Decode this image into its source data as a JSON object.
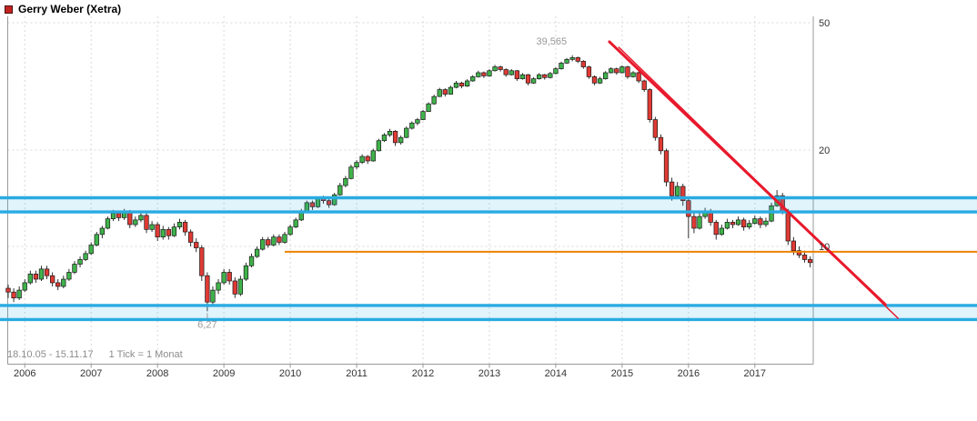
{
  "header": {
    "title": "Gerry Weber (Xetra)"
  },
  "footer": {
    "range_text": "18.10.05 - 15.11.17",
    "tick_text": "1 Tick = 1 Monat"
  },
  "chart_data": {
    "type": "candlestick",
    "title": "Gerry Weber (Xetra)",
    "scale": "log",
    "start": "2005-10",
    "end": "2017-11",
    "interval": "1 month",
    "x_axis": {
      "year_labels": [
        "2006",
        "2007",
        "2008",
        "2009",
        "2010",
        "2011",
        "2012",
        "2013",
        "2014",
        "2015",
        "2016",
        "2017"
      ]
    },
    "y_axis": {
      "side": "right",
      "tick_labels": [
        "50",
        "20",
        "10"
      ],
      "tick_values": [
        50,
        20,
        10
      ]
    },
    "ylim_approx": [
      5.5,
      52
    ],
    "all_time_high": 39.565,
    "all_time_low": 6.27,
    "annotations": {
      "high_text": "39,565",
      "high_month_index": 102,
      "low_text": "6,27",
      "low_month_index": 36
    },
    "candles": [
      [
        7.4,
        7.6,
        6.9,
        7.2
      ],
      [
        7.2,
        7.4,
        6.7,
        6.9
      ],
      [
        6.9,
        7.5,
        6.8,
        7.3
      ],
      [
        7.3,
        7.9,
        7.2,
        7.7
      ],
      [
        7.7,
        8.4,
        7.6,
        8.2
      ],
      [
        8.2,
        8.4,
        7.7,
        7.9
      ],
      [
        7.9,
        8.7,
        7.8,
        8.5
      ],
      [
        8.5,
        8.7,
        7.9,
        8.1
      ],
      [
        8.1,
        8.3,
        7.5,
        7.7
      ],
      [
        7.7,
        7.9,
        7.3,
        7.5
      ],
      [
        7.5,
        8.1,
        7.4,
        7.9
      ],
      [
        7.9,
        8.5,
        7.8,
        8.3
      ],
      [
        8.3,
        9.0,
        8.2,
        8.8
      ],
      [
        8.8,
        9.3,
        8.6,
        9.1
      ],
      [
        9.1,
        9.7,
        9.0,
        9.5
      ],
      [
        9.5,
        10.3,
        9.4,
        10.1
      ],
      [
        10.1,
        11.1,
        10.0,
        10.9
      ],
      [
        10.9,
        11.6,
        10.6,
        11.4
      ],
      [
        11.4,
        12.4,
        11.3,
        12.2
      ],
      [
        12.2,
        13.0,
        12.0,
        12.7
      ],
      [
        12.7,
        12.9,
        12.0,
        12.3
      ],
      [
        12.3,
        13.1,
        12.1,
        12.8
      ],
      [
        12.8,
        13.0,
        11.4,
        11.7
      ],
      [
        11.7,
        12.4,
        11.5,
        12.1
      ],
      [
        12.1,
        12.8,
        11.9,
        12.5
      ],
      [
        12.5,
        12.7,
        11.0,
        11.3
      ],
      [
        11.3,
        12.0,
        11.1,
        11.7
      ],
      [
        11.7,
        11.9,
        10.4,
        10.7
      ],
      [
        10.7,
        11.6,
        10.5,
        11.3
      ],
      [
        11.3,
        11.5,
        10.5,
        10.8
      ],
      [
        10.8,
        11.8,
        10.7,
        11.5
      ],
      [
        11.5,
        12.2,
        11.3,
        11.9
      ],
      [
        11.9,
        12.1,
        10.8,
        11.1
      ],
      [
        11.1,
        11.3,
        10.0,
        10.3
      ],
      [
        10.3,
        10.6,
        9.6,
        9.9
      ],
      [
        9.9,
        10.1,
        7.8,
        8.1
      ],
      [
        8.1,
        8.3,
        6.27,
        6.7
      ],
      [
        6.7,
        7.5,
        6.5,
        7.3
      ],
      [
        7.3,
        7.9,
        7.1,
        7.7
      ],
      [
        7.7,
        8.5,
        7.6,
        8.3
      ],
      [
        8.3,
        8.5,
        7.6,
        7.8
      ],
      [
        7.8,
        8.0,
        6.9,
        7.1
      ],
      [
        7.1,
        8.1,
        7.0,
        7.9
      ],
      [
        7.9,
        8.9,
        7.8,
        8.7
      ],
      [
        8.7,
        9.5,
        8.6,
        9.3
      ],
      [
        9.3,
        10.0,
        9.2,
        9.8
      ],
      [
        9.8,
        10.7,
        9.7,
        10.5
      ],
      [
        10.5,
        10.7,
        9.9,
        10.1
      ],
      [
        10.1,
        10.9,
        10.0,
        10.7
      ],
      [
        10.7,
        10.9,
        10.1,
        10.3
      ],
      [
        10.3,
        11.1,
        10.2,
        10.9
      ],
      [
        10.9,
        11.7,
        10.8,
        11.5
      ],
      [
        11.5,
        12.3,
        11.4,
        12.1
      ],
      [
        12.1,
        13.1,
        12.0,
        12.9
      ],
      [
        12.9,
        13.9,
        12.8,
        13.7
      ],
      [
        13.7,
        13.9,
        13.0,
        13.3
      ],
      [
        13.3,
        14.3,
        13.2,
        14.1
      ],
      [
        14.1,
        14.4,
        13.6,
        13.9
      ],
      [
        13.9,
        14.1,
        13.2,
        13.5
      ],
      [
        13.5,
        14.7,
        13.4,
        14.5
      ],
      [
        14.5,
        15.8,
        14.4,
        15.5
      ],
      [
        15.5,
        16.6,
        15.3,
        16.3
      ],
      [
        16.3,
        18.0,
        16.2,
        17.7
      ],
      [
        17.7,
        18.6,
        17.4,
        18.3
      ],
      [
        18.3,
        19.4,
        18.1,
        19.1
      ],
      [
        19.1,
        19.3,
        18.1,
        18.5
      ],
      [
        18.5,
        20.2,
        18.4,
        19.9
      ],
      [
        19.9,
        21.7,
        19.8,
        21.4
      ],
      [
        21.4,
        22.6,
        21.2,
        22.3
      ],
      [
        22.3,
        23.3,
        22.0,
        22.9
      ],
      [
        22.9,
        23.1,
        20.6,
        21.1
      ],
      [
        21.1,
        22.2,
        20.8,
        21.9
      ],
      [
        21.9,
        23.7,
        21.8,
        23.4
      ],
      [
        23.4,
        24.6,
        23.2,
        24.3
      ],
      [
        24.3,
        25.2,
        23.9,
        24.9
      ],
      [
        24.9,
        26.7,
        24.8,
        26.4
      ],
      [
        26.4,
        28.2,
        26.3,
        27.9
      ],
      [
        27.9,
        29.8,
        27.7,
        29.4
      ],
      [
        29.4,
        31.3,
        29.3,
        30.9
      ],
      [
        30.9,
        31.2,
        29.4,
        29.9
      ],
      [
        29.9,
        31.8,
        29.8,
        31.4
      ],
      [
        31.4,
        32.9,
        31.2,
        32.4
      ],
      [
        32.4,
        32.7,
        31.2,
        31.7
      ],
      [
        31.7,
        33.3,
        31.5,
        32.9
      ],
      [
        32.9,
        34.3,
        32.7,
        33.9
      ],
      [
        33.9,
        35.4,
        33.7,
        34.9
      ],
      [
        34.9,
        35.2,
        33.6,
        34.1
      ],
      [
        34.1,
        35.8,
        33.9,
        35.4
      ],
      [
        35.4,
        36.9,
        35.2,
        36.4
      ],
      [
        36.4,
        36.7,
        35.2,
        35.7
      ],
      [
        35.7,
        36.0,
        33.9,
        34.4
      ],
      [
        34.4,
        35.8,
        34.2,
        35.4
      ],
      [
        35.4,
        35.6,
        32.9,
        33.4
      ],
      [
        33.4,
        34.8,
        33.2,
        34.4
      ],
      [
        34.4,
        34.6,
        31.9,
        32.4
      ],
      [
        32.4,
        33.8,
        32.2,
        33.4
      ],
      [
        33.4,
        34.8,
        33.2,
        34.4
      ],
      [
        34.4,
        34.6,
        33.2,
        33.7
      ],
      [
        33.7,
        35.1,
        33.5,
        34.7
      ],
      [
        34.7,
        36.3,
        34.5,
        35.9
      ],
      [
        35.9,
        37.8,
        35.7,
        37.4
      ],
      [
        37.4,
        38.8,
        37.2,
        38.4
      ],
      [
        38.4,
        39.565,
        37.9,
        38.9
      ],
      [
        38.9,
        39.2,
        37.4,
        37.9
      ],
      [
        37.9,
        38.2,
        35.9,
        36.4
      ],
      [
        36.4,
        36.7,
        33.4,
        33.9
      ],
      [
        33.9,
        34.2,
        31.9,
        32.4
      ],
      [
        32.4,
        33.9,
        32.2,
        33.4
      ],
      [
        33.4,
        35.3,
        33.2,
        34.9
      ],
      [
        34.9,
        36.3,
        34.7,
        35.9
      ],
      [
        35.9,
        36.2,
        34.4,
        34.9
      ],
      [
        34.9,
        36.8,
        34.7,
        36.4
      ],
      [
        36.4,
        36.7,
        33.4,
        33.9
      ],
      [
        33.9,
        35.3,
        33.7,
        34.9
      ],
      [
        34.9,
        35.2,
        32.4,
        32.9
      ],
      [
        32.9,
        33.2,
        30.4,
        30.9
      ],
      [
        30.9,
        31.2,
        24.4,
        24.9
      ],
      [
        24.9,
        25.4,
        21.4,
        21.9
      ],
      [
        21.9,
        22.4,
        19.4,
        19.9
      ],
      [
        19.9,
        20.2,
        15.4,
        15.9
      ],
      [
        15.9,
        16.4,
        13.9,
        14.4
      ],
      [
        14.4,
        15.9,
        14.2,
        15.4
      ],
      [
        15.4,
        15.7,
        13.4,
        13.9
      ],
      [
        13.9,
        14.1,
        10.6,
        12.4
      ],
      [
        12.4,
        12.7,
        11.0,
        11.4
      ],
      [
        11.4,
        12.7,
        11.3,
        12.4
      ],
      [
        12.4,
        13.2,
        12.2,
        12.9
      ],
      [
        12.9,
        13.1,
        11.6,
        11.9
      ],
      [
        11.9,
        12.1,
        10.5,
        10.9
      ],
      [
        10.9,
        11.7,
        10.8,
        11.4
      ],
      [
        11.4,
        12.2,
        11.3,
        11.9
      ],
      [
        11.9,
        12.1,
        11.4,
        11.7
      ],
      [
        11.7,
        12.4,
        11.6,
        12.1
      ],
      [
        12.1,
        12.3,
        11.2,
        11.5
      ],
      [
        11.5,
        12.1,
        11.3,
        11.8
      ],
      [
        11.8,
        12.5,
        11.7,
        12.2
      ],
      [
        12.2,
        12.4,
        11.4,
        11.7
      ],
      [
        11.7,
        12.3,
        11.5,
        12.0
      ],
      [
        12.0,
        13.7,
        11.9,
        13.4
      ],
      [
        13.4,
        15.0,
        13.3,
        14.4
      ],
      [
        14.4,
        14.7,
        12.6,
        12.9
      ],
      [
        12.9,
        13.1,
        10.1,
        10.4
      ],
      [
        10.4,
        10.7,
        9.4,
        9.7
      ],
      [
        9.7,
        10.0,
        9.2,
        9.4
      ],
      [
        9.4,
        9.7,
        8.9,
        9.1
      ],
      [
        9.1,
        9.3,
        8.6,
        8.9
      ]
    ],
    "overlays": {
      "bands": [
        {
          "name": "resistance-band",
          "price_top": 14.19,
          "price_bottom": 12.82
        },
        {
          "name": "support-band",
          "price_top": 6.54,
          "price_bottom": 5.91
        }
      ],
      "horizontal_line": {
        "price": 9.62,
        "start_month_index": 50
      },
      "trendlines": [
        {
          "from_month_index": 108.7,
          "from_price": 43.6,
          "to_month_index": 158.6,
          "to_price": 6.58,
          "width": 3
        },
        {
          "from_month_index": 110.4,
          "from_price": 41.9,
          "to_month_index": 160.9,
          "to_price": 5.96,
          "width": 1.5
        }
      ]
    },
    "colors": {
      "candle_up": "#3fb24a",
      "candle_down": "#e03a34",
      "wick": "#1a1a1a",
      "band": "#29abe2",
      "horizontal_line": "#ef8200",
      "trendline": "#e8192c",
      "grid": "#d8d8d8",
      "axis": "#999999",
      "annotation_text": "#999999",
      "axis_text": "#333333"
    }
  }
}
